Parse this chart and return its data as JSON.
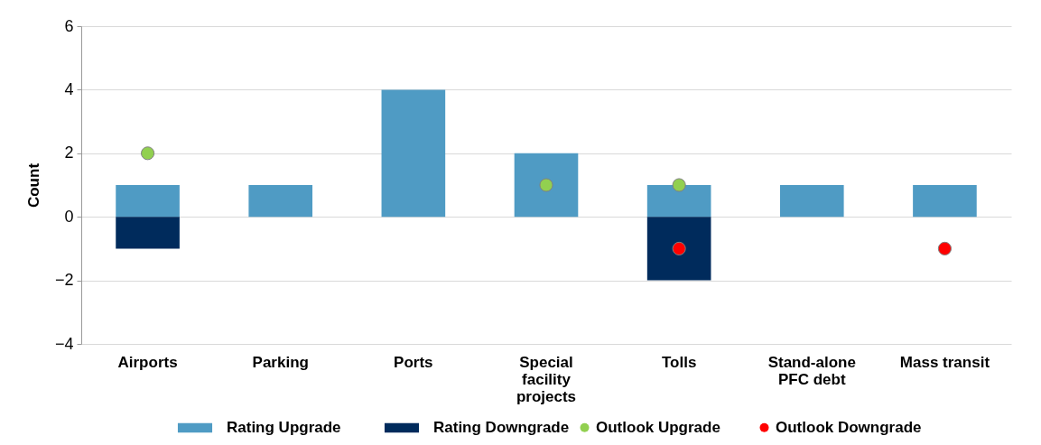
{
  "chart_data": {
    "type": "bar",
    "ylabel": "Count",
    "categories": [
      "Airports",
      "Parking",
      "Ports",
      "Special facility projects",
      "Tolls",
      "Stand-alone PFC debt",
      "Mass transit"
    ],
    "stacked": true,
    "ylim": [
      -4,
      6
    ],
    "yticks": [
      -4,
      -2,
      0,
      2,
      4,
      6
    ],
    "grid": "y",
    "legend": "bottom",
    "marker": "circle",
    "series": [
      {
        "name": "Rating Upgrade",
        "color": "#4f9bc4",
        "values": [
          1,
          1,
          4,
          2,
          1,
          1,
          1
        ]
      },
      {
        "name": "Rating Downgrade",
        "color": "#002b5c",
        "values": [
          -1,
          null,
          null,
          null,
          -2,
          null,
          null
        ]
      },
      {
        "name": "Outlook Upgrade",
        "type": "scatter",
        "color": "#92d050",
        "values": [
          2,
          null,
          null,
          1,
          1,
          null,
          null
        ]
      },
      {
        "name": "Outlook Downgrade",
        "type": "scatter",
        "color": "#ff0000",
        "values": [
          null,
          null,
          null,
          null,
          -1,
          null,
          -1
        ]
      }
    ]
  }
}
